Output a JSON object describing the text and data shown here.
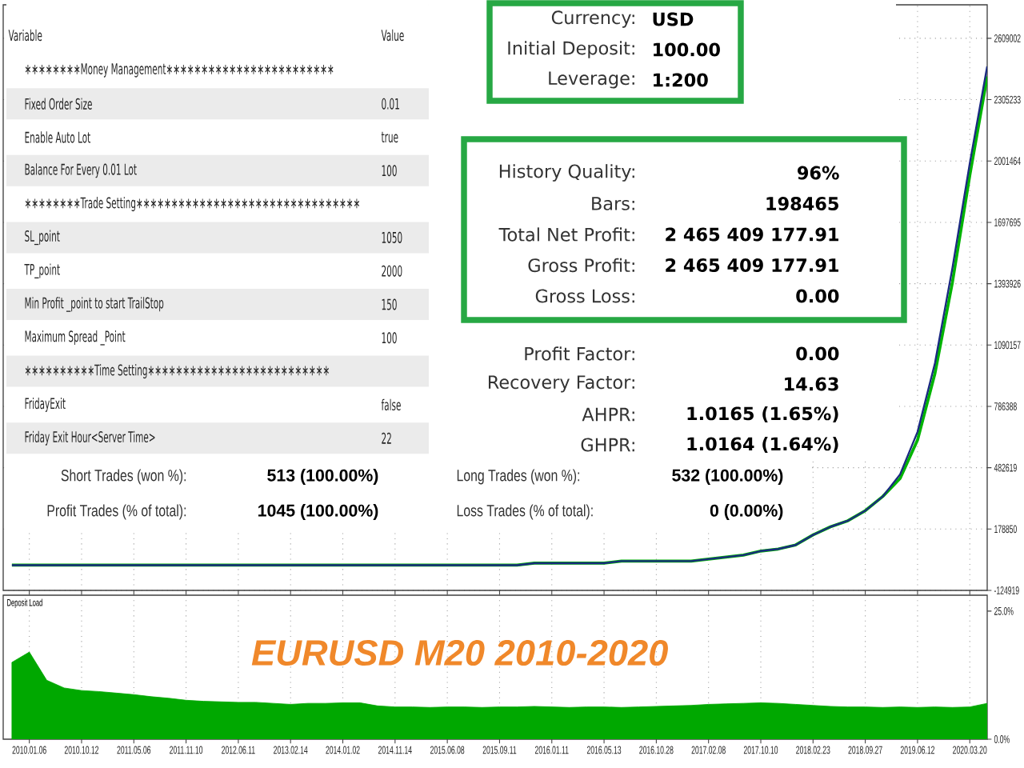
{
  "chart_data": [
    {
      "type": "line",
      "categories": [
        null,
        "2010.01.06",
        null,
        null,
        "2010.10.12",
        null,
        null,
        "2011.05.06",
        null,
        null,
        "2011.11.10",
        null,
        null,
        "2012.06.11",
        null,
        null,
        "2013.02.14",
        null,
        null,
        "2014.01.02",
        null,
        null,
        "2014.11.14",
        null,
        null,
        "2015.06.08",
        null,
        null,
        "2015.09.11",
        null,
        null,
        "2016.01.11",
        null,
        null,
        "2016.05.13",
        null,
        null,
        "2016.10.28",
        null,
        null,
        "2017.02.08",
        null,
        null,
        "2017.10.10",
        null,
        null,
        "2018.02.23",
        null,
        null,
        "2018.09.27",
        null,
        null,
        "2019.06.12",
        null,
        null,
        "2020.03.20",
        null
      ],
      "ylim": [
        -124919,
        2775000
      ],
      "yticks": [
        -124919,
        178850,
        482619,
        786388,
        1090157,
        1393926,
        1697695,
        2001464,
        2305233,
        2609002
      ],
      "grid": true,
      "tick_labels": "y",
      "series": [
        {
          "color": "#00b400",
          "values": [
            0,
            0,
            0,
            0,
            0,
            0,
            0,
            0,
            0,
            0,
            0,
            0,
            0,
            0,
            0,
            0,
            0,
            0,
            0,
            0,
            0,
            0,
            0,
            0,
            0,
            0,
            0,
            0,
            0,
            0,
            10000,
            10000,
            10000,
            10000,
            10000,
            20000,
            20000,
            20000,
            20000,
            20000,
            30000,
            40000,
            50000,
            70000,
            80000,
            100000,
            150000,
            190000,
            220000,
            270000,
            340000,
            430000,
            620000,
            950000,
            1400000,
            1930000,
            2420000
          ]
        },
        {
          "color": "#1a2a80",
          "values": [
            0,
            0,
            0,
            0,
            0,
            0,
            0,
            0,
            0,
            0,
            0,
            0,
            0,
            0,
            0,
            0,
            0,
            0,
            0,
            0,
            0,
            0,
            0,
            0,
            0,
            0,
            0,
            0,
            0,
            0,
            10000,
            10000,
            10000,
            10000,
            10000,
            20000,
            20000,
            20000,
            20000,
            20000,
            30000,
            40000,
            50000,
            70000,
            80000,
            100000,
            150000,
            190000,
            220000,
            270000,
            340000,
            450000,
            660000,
            1000000,
            1470000,
            1990000,
            2470000
          ]
        }
      ]
    },
    {
      "type": "area",
      "title": "Deposit Load",
      "categories": [
        null,
        "2010.01.06",
        null,
        null,
        "2010.10.12",
        null,
        null,
        "2011.05.06",
        null,
        null,
        "2011.11.10",
        null,
        null,
        "2012.06.11",
        null,
        null,
        "2013.02.14",
        null,
        null,
        "2014.01.02",
        null,
        null,
        "2014.11.14",
        null,
        null,
        "2015.06.08",
        null,
        null,
        "2015.09.11",
        null,
        null,
        "2016.01.11",
        null,
        null,
        "2016.05.13",
        null,
        null,
        "2016.10.28",
        null,
        null,
        "2017.02.08",
        null,
        null,
        "2017.10.10",
        null,
        null,
        "2018.02.23",
        null,
        null,
        "2018.09.27",
        null,
        null,
        "2019.06.12",
        null,
        null,
        "2020.03.20",
        null
      ],
      "ylim": [
        0,
        28.1
      ],
      "yticks": [
        {
          "value": 0,
          "label": "0.0%"
        },
        {
          "value": 25,
          "label": "25.0%"
        }
      ],
      "grid": "x",
      "color": "#00a800",
      "values": [
        15,
        17,
        11.5,
        10,
        9.5,
        9.3,
        9,
        8.7,
        8.3,
        8,
        7.6,
        7.4,
        7.3,
        7.2,
        7.2,
        7,
        6.8,
        7,
        7,
        7.1,
        7.1,
        6.5,
        6.3,
        6.3,
        6.2,
        6.3,
        6.3,
        6.2,
        6.3,
        6.3,
        6.4,
        6.3,
        6.2,
        6.3,
        6.3,
        6.2,
        6.3,
        6.4,
        6.5,
        6.6,
        6.8,
        6.9,
        7,
        7.1,
        7,
        6.8,
        6.6,
        6.4,
        6.3,
        6.3,
        6.2,
        6.3,
        6.2,
        6.3,
        6.2,
        6.3,
        7
      ],
      "annotations": [
        "EURUSD M20  2010-2020"
      ]
    },
    {
      "type": "other",
      "annotations": [
        "Variable",
        "Value"
      ],
      "categories": [
        "∗∗∗∗∗∗∗∗Money Management∗∗∗∗∗∗∗∗∗∗∗∗∗∗∗∗∗∗∗∗∗∗∗∗",
        "Fixed Order Size",
        "Enable Auto Lot",
        "Balance For Every 0.01 Lot",
        "∗∗∗∗∗∗∗∗Trade Setting∗∗∗∗∗∗∗∗∗∗∗∗∗∗∗∗∗∗∗∗∗∗∗∗∗∗∗∗∗∗∗∗",
        "SL_point",
        "TP_point",
        "Min Profit _point to start TrailStop",
        "Maximum Spread _Point",
        "∗∗∗∗∗∗∗∗∗∗Time Setting∗∗∗∗∗∗∗∗∗∗∗∗∗∗∗∗∗∗∗∗∗∗∗∗∗∗",
        "FridayExit",
        "Friday Exit Hour<Server Time>"
      ],
      "value_labels": [
        null,
        "0.01",
        "true",
        "100",
        null,
        "1050",
        "2000",
        "150",
        "100",
        null,
        "false",
        "22"
      ]
    },
    {
      "type": "other",
      "annotations": [
        "Currency:",
        "USD",
        "Initial Deposit:",
        "100.00",
        "Leverage:",
        "1:200"
      ]
    },
    {
      "type": "other",
      "annotations": [
        "History Quality:",
        "96%",
        "Bars:",
        "198465",
        "Total Net Profit:",
        "2 465 409 177.91",
        "Gross Profit:",
        "2 465 409 177.91",
        "Gross Loss:",
        "0.00"
      ]
    },
    {
      "type": "other",
      "annotations": [
        "Profit Factor:",
        "0.00",
        "Recovery Factor:",
        "14.63",
        "AHPR:",
        "1.0165 (1.65%)",
        "GHPR:",
        "1.0164 (1.64%)"
      ]
    },
    {
      "type": "other",
      "annotations": [
        "Short Trades (won %):",
        "513 (100.00%)",
        "Long Trades (won %):",
        "532 (100.00%)",
        "Profit Trades (% of total):",
        "1045 (100.00%)",
        "Loss Trades (% of total):",
        "0 (0.00%)"
      ]
    }
  ]
}
